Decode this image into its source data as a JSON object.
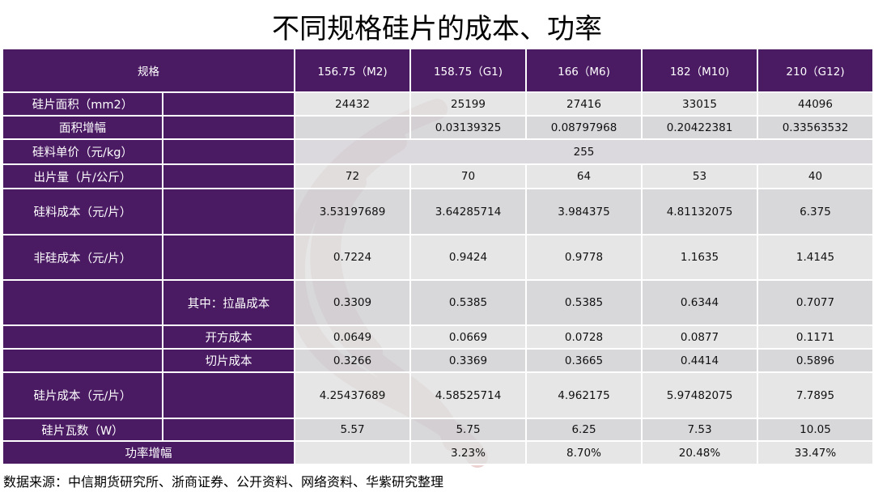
{
  "title": "不同规格硅片的成本、功率",
  "table": {
    "spec_label": "规格",
    "columns": [
      "156.75（M2)",
      "158.75（G1)",
      "166（M6)",
      "182（M10)",
      "210（G12)"
    ],
    "rows": {
      "area": {
        "label": "硅片面积（mm2）",
        "values": [
          "24432",
          "25199",
          "27416",
          "33015",
          "44096"
        ]
      },
      "area_growth": {
        "label": "面积增幅",
        "values": [
          "",
          "0.03139325",
          "0.08797968",
          "0.20422381",
          "0.33563532"
        ]
      },
      "si_price": {
        "label": "硅料单价（元/kg）",
        "value": "255"
      },
      "yield": {
        "label": "出片量（片/公斤）",
        "values": [
          "72",
          "70",
          "64",
          "53",
          "40"
        ]
      },
      "si_cost": {
        "label": "硅料成本（元/片）",
        "values": [
          "3.53197689",
          "3.64285714",
          "3.984375",
          "4.81132075",
          "6.375"
        ]
      },
      "non_si_cost": {
        "label": "非硅成本（元/片）",
        "values": [
          "0.7224",
          "0.9424",
          "0.9778",
          "1.1635",
          "1.4145"
        ]
      },
      "pulling": {
        "label": "其中：拉晶成本",
        "values": [
          "0.3309",
          "0.5385",
          "0.5385",
          "0.6344",
          "0.7077"
        ]
      },
      "squaring": {
        "label": "开方成本",
        "values": [
          "0.0649",
          "0.0669",
          "0.0728",
          "0.0877",
          "0.1171"
        ]
      },
      "slicing": {
        "label": "切片成本",
        "values": [
          "0.3266",
          "0.3369",
          "0.3665",
          "0.4414",
          "0.5896"
        ]
      },
      "wafer_cost": {
        "label": "硅片成本（元/片）",
        "values": [
          "4.25437689",
          "4.58525714",
          "4.962175",
          "5.97482075",
          "7.7895"
        ]
      },
      "wattage": {
        "label": "硅片瓦数（W）",
        "values": [
          "5.57",
          "5.75",
          "6.25",
          "7.53",
          "10.05"
        ]
      },
      "power_growth": {
        "label": "功率增幅",
        "values": [
          "",
          "3.23%",
          "8.70%",
          "20.48%",
          "33.47%"
        ]
      }
    }
  },
  "footer": "数据来源：中信期货研究所、浙商证券、公开资料、网络资料、华紫研究整理",
  "colors": {
    "header": "#4a1a63",
    "cell": "#e0e0e0",
    "cell_alt": "#cecece",
    "watermark": "#d9a3a3"
  }
}
